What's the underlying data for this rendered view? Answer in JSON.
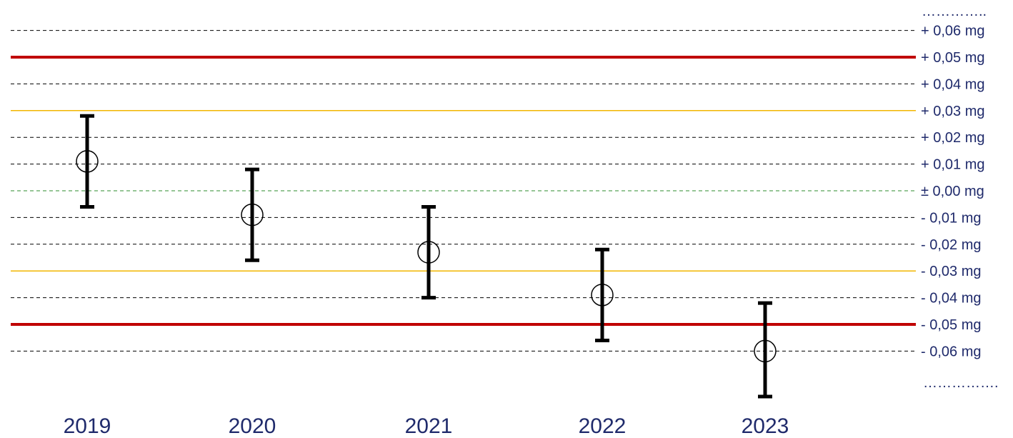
{
  "chart_data": {
    "type": "scatter",
    "categories": [
      "2019",
      "2020",
      "2021",
      "2022",
      "2023"
    ],
    "points": [
      {
        "x": "2019",
        "y": 0.011,
        "low": -0.006,
        "high": 0.028
      },
      {
        "x": "2020",
        "y": -0.009,
        "low": -0.026,
        "high": 0.008
      },
      {
        "x": "2021",
        "y": -0.023,
        "low": -0.04,
        "high": -0.006
      },
      {
        "x": "2022",
        "y": -0.039,
        "low": -0.056,
        "high": -0.022
      },
      {
        "x": "2023",
        "y": -0.06,
        "low": -0.077,
        "high": -0.042
      }
    ],
    "ytick_labels": [
      "+ 0,06 mg",
      "+ 0,05 mg",
      "+ 0,04 mg",
      "+ 0,03 mg",
      "+ 0,02 mg",
      "+ 0,01 mg",
      "± 0,00 mg",
      "- 0,01 mg",
      "- 0,02 mg",
      "- 0,03 mg",
      "- 0,04 mg",
      "- 0,05 mg",
      "- 0,06 mg"
    ],
    "ytick_values": [
      0.06,
      0.05,
      0.04,
      0.03,
      0.02,
      0.01,
      0.0,
      -0.01,
      -0.02,
      -0.03,
      -0.04,
      -0.05,
      -0.06
    ],
    "ellipsis_top": "…………..",
    "ellipsis_bottom": "…………….",
    "limit_lines": [
      {
        "value": 0.05,
        "color": "#c00000",
        "style": "solid-thick"
      },
      {
        "value": -0.05,
        "color": "#c00000",
        "style": "solid-thick"
      },
      {
        "value": 0.03,
        "color": "#f2b600",
        "style": "solid-thin"
      },
      {
        "value": -0.03,
        "color": "#f2b600",
        "style": "solid-thin"
      },
      {
        "value": 0.0,
        "color": "#2e8b2e",
        "style": "dashed"
      }
    ],
    "ylim": [
      -0.075,
      0.07
    ],
    "grid": true,
    "colors": {
      "text": "#1f2a6b",
      "marker": "#000000",
      "grid": "#000000"
    }
  }
}
